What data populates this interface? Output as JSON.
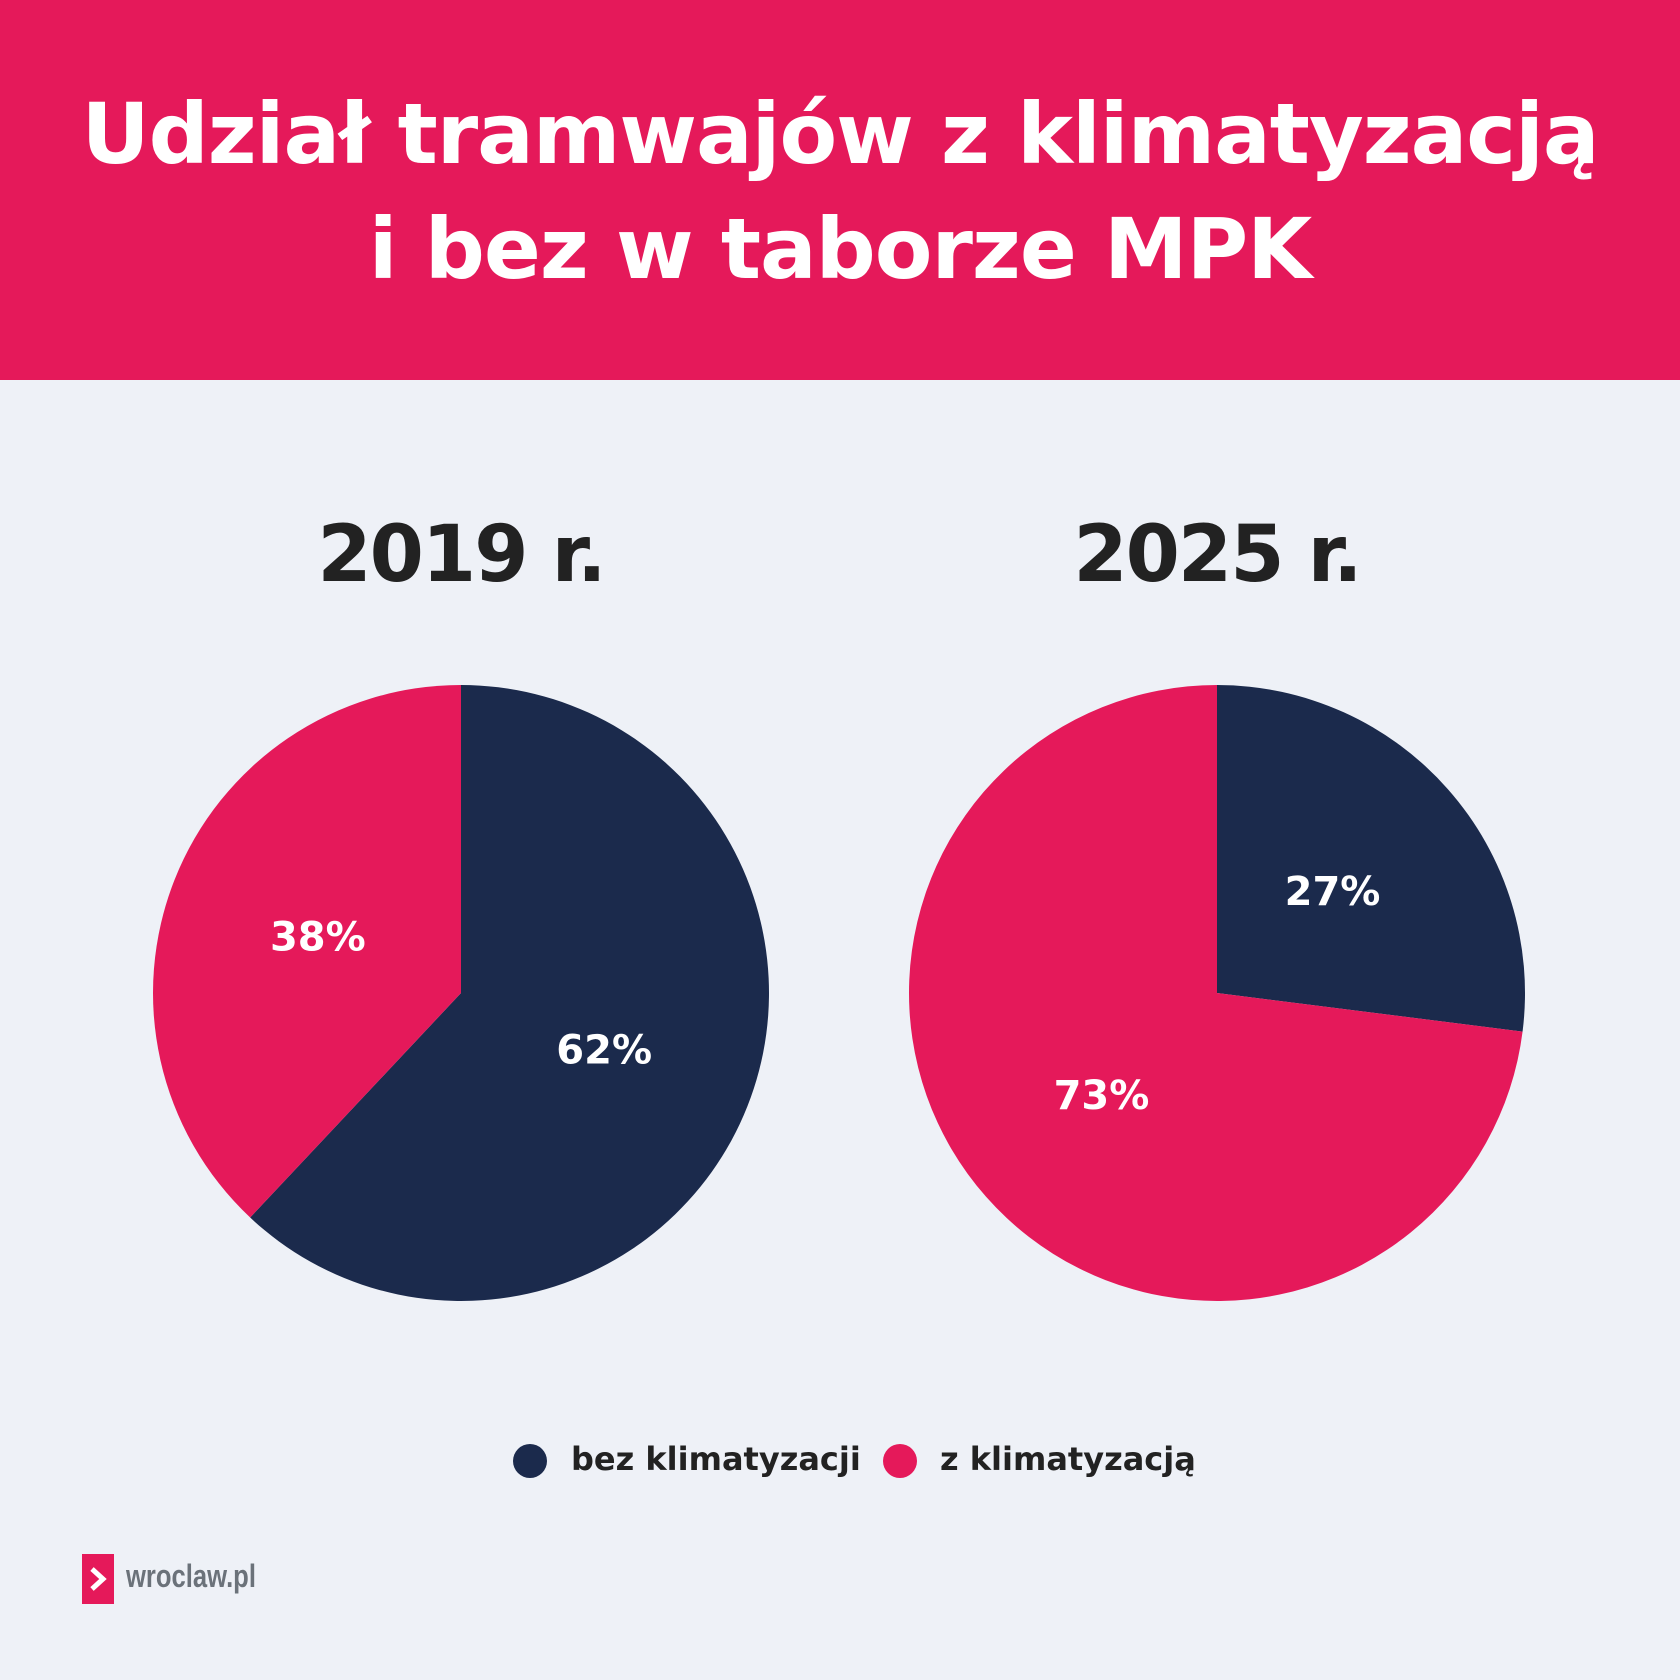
{
  "header": {
    "title_line1": "Udział tramwajów z klimatyzacją",
    "title_line2": "i bez w taborze MPK"
  },
  "colors": {
    "accent": "#E5195A",
    "navy": "#1B2A4C",
    "background": "#EEF1F7"
  },
  "chart_data": [
    {
      "type": "pie",
      "title": "2019 r.",
      "slices": [
        {
          "name": "bez klimatyzacji",
          "value": 62,
          "label": "62%",
          "color": "#1B2A4C"
        },
        {
          "name": "z klimatyzacją",
          "value": 38,
          "label": "38%",
          "color": "#E5195A"
        }
      ]
    },
    {
      "type": "pie",
      "title": "2025 r.",
      "slices": [
        {
          "name": "bez klimatyzacji",
          "value": 27,
          "label": "27%",
          "color": "#1B2A4C"
        },
        {
          "name": "z klimatyzacją",
          "value": 73,
          "label": "73%",
          "color": "#E5195A"
        }
      ]
    }
  ],
  "legend": [
    {
      "label": "bez klimatyzacji",
      "color": "#1B2A4C"
    },
    {
      "label": "z klimatyzacją",
      "color": "#E5195A"
    }
  ],
  "logo": {
    "text": "wroclaw.pl"
  }
}
